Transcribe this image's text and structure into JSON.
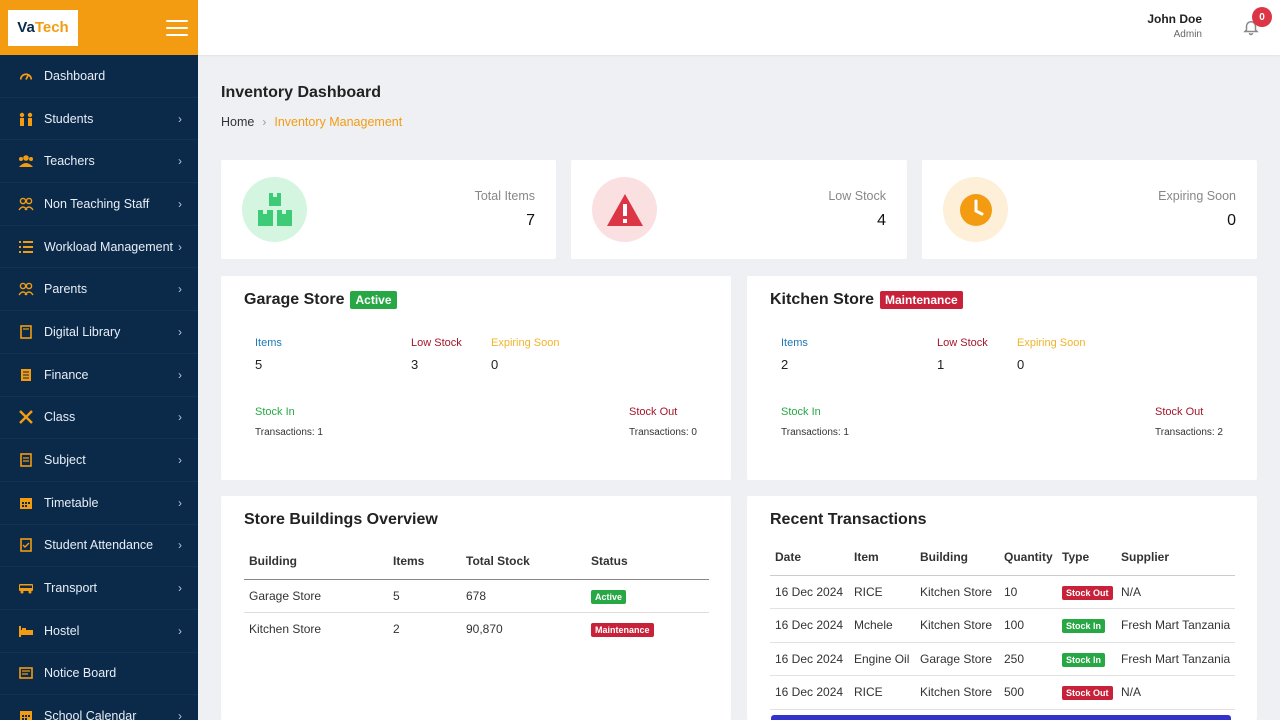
{
  "brand": {
    "logo_text_a": "Va",
    "logo_text_b": "Tech"
  },
  "header": {
    "user_name": "John Doe",
    "user_role": "Admin",
    "notifications": "0"
  },
  "sidebar": {
    "items": [
      {
        "label": "Dashboard",
        "icon": "speedometer-icon",
        "chevron": false
      },
      {
        "label": "Students",
        "icon": "students-icon",
        "chevron": true
      },
      {
        "label": "Teachers",
        "icon": "teachers-icon",
        "chevron": true
      },
      {
        "label": "Non Teaching Staff",
        "icon": "staff-icon",
        "chevron": true
      },
      {
        "label": "Workload Management",
        "icon": "list-icon",
        "chevron": true
      },
      {
        "label": "Parents",
        "icon": "parents-icon",
        "chevron": true
      },
      {
        "label": "Digital Library",
        "icon": "book-icon",
        "chevron": true
      },
      {
        "label": "Finance",
        "icon": "finance-icon",
        "chevron": true
      },
      {
        "label": "Class",
        "icon": "class-icon",
        "chevron": true
      },
      {
        "label": "Subject",
        "icon": "subject-icon",
        "chevron": true
      },
      {
        "label": "Timetable",
        "icon": "calendar-icon",
        "chevron": true
      },
      {
        "label": "Student Attendance",
        "icon": "attendance-icon",
        "chevron": true
      },
      {
        "label": "Transport",
        "icon": "bus-icon",
        "chevron": true
      },
      {
        "label": "Hostel",
        "icon": "bed-icon",
        "chevron": true
      },
      {
        "label": "Notice Board",
        "icon": "notice-icon",
        "chevron": false
      },
      {
        "label": "School Calendar",
        "icon": "calendar-icon",
        "chevron": true
      }
    ]
  },
  "page": {
    "title": "Inventory Dashboard",
    "breadcrumb_home": "Home",
    "breadcrumb_current": "Inventory Management"
  },
  "stats": [
    {
      "label": "Total Items",
      "value": "7",
      "icon": "boxes-icon",
      "bg": "#d4f5e0",
      "fg": "#3ecb78"
    },
    {
      "label": "Low Stock",
      "value": "4",
      "icon": "warning-icon",
      "bg": "#fbe0e2",
      "fg": "#dc3545"
    },
    {
      "label": "Expiring Soon",
      "value": "0",
      "icon": "clock-icon",
      "bg": "#fdefd8",
      "fg": "#f39c12"
    }
  ],
  "stores": [
    {
      "name": "Garage Store",
      "status": "Active",
      "items_label": "Items",
      "items": "5",
      "low_label": "Low Stock",
      "low": "3",
      "exp_label": "Expiring Soon",
      "exp": "0",
      "in_label": "Stock In",
      "in_txn": "Transactions: 1",
      "out_label": "Stock Out",
      "out_txn": "Transactions: 0"
    },
    {
      "name": "Kitchen Store",
      "status": "Maintenance",
      "items_label": "Items",
      "items": "2",
      "low_label": "Low Stock",
      "low": "1",
      "exp_label": "Expiring Soon",
      "exp": "0",
      "in_label": "Stock In",
      "in_txn": "Transactions: 1",
      "out_label": "Stock Out",
      "out_txn": "Transactions: 2"
    }
  ],
  "buildings": {
    "title": "Store Buildings Overview",
    "headers": [
      "Building",
      "Items",
      "Total Stock",
      "Status"
    ],
    "rows": [
      [
        "Garage Store",
        "5",
        "678",
        "Active"
      ],
      [
        "Kitchen Store",
        "2",
        "90,870",
        "Maintenance"
      ]
    ]
  },
  "transactions": {
    "title": "Recent Transactions",
    "headers": [
      "Date",
      "Item",
      "Building",
      "Quantity",
      "Type",
      "Supplier"
    ],
    "rows": [
      [
        "16 Dec 2024",
        "RICE",
        "Kitchen Store",
        "10",
        "Stock Out",
        "N/A"
      ],
      [
        "16 Dec 2024",
        "Mchele",
        "Kitchen Store",
        "100",
        "Stock In",
        "Fresh Mart Tanzania"
      ],
      [
        "16 Dec 2024",
        "Engine Oil",
        "Garage Store",
        "250",
        "Stock In",
        "Fresh Mart Tanzania"
      ],
      [
        "16 Dec 2024",
        "RICE",
        "Kitchen Store",
        "500",
        "Stock Out",
        "N/A"
      ]
    ]
  }
}
